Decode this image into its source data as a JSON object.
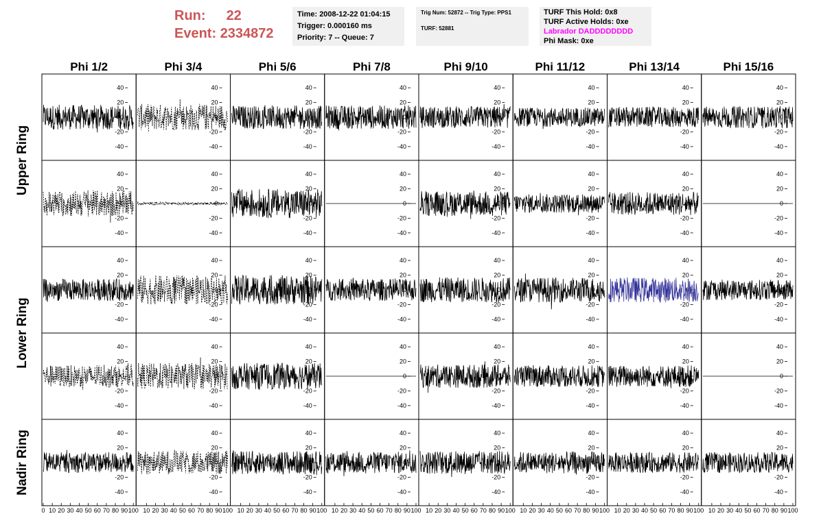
{
  "header": {
    "run_label": "Run:",
    "run_value": "22",
    "event_label": "Event:",
    "event_value": "2334872",
    "time_info": [
      "Time: 2008-12-22 01:04:15",
      "Trigger: 0.000160 ms",
      "Priority: 7 -- Queue: 7"
    ],
    "trig_info": [
      "Trig Num: 52872 -- Trig Type: PPS1",
      "TURF: 52881"
    ],
    "turf_info": [
      {
        "text": "TURF This Hold: 0x8",
        "color": "#000000"
      },
      {
        "text": "TURF Active Holds: 0xe",
        "color": "#000000"
      },
      {
        "text": "Labrador DADDDDDDDD",
        "color": "#ff00ff"
      },
      {
        "text": "Phi Mask: 0xe",
        "color": "#000000"
      }
    ]
  },
  "chart_data": {
    "type": "line",
    "columns": [
      "Phi 1/2",
      "Phi 3/4",
      "Phi 5/6",
      "Phi 7/8",
      "Phi 9/10",
      "Phi 11/12",
      "Phi 13/14",
      "Phi 15/16"
    ],
    "ring_labels": [
      {
        "text": "Upper Ring",
        "rows": [
          0,
          1
        ]
      },
      {
        "text": "Lower Ring",
        "rows": [
          2,
          3
        ]
      },
      {
        "text": "Nadir Ring",
        "rows": [
          4
        ]
      }
    ],
    "xlim": [
      0,
      100
    ],
    "ylim": [
      -55,
      55
    ],
    "y_ticks": [
      -40,
      -20,
      0,
      20,
      40
    ],
    "y_tick_labels": [
      "-40",
      "-20",
      "0",
      "20",
      "40"
    ],
    "x_tick_labels": [
      "0",
      "10",
      "20",
      "30",
      "40",
      "50",
      "60",
      "70",
      "80",
      "90",
      "100"
    ],
    "grid": false,
    "trace_color_default": "#000000",
    "trace_color_highlight": "#333399",
    "panels": [
      [
        {
          "style": "solid",
          "amp": 17,
          "flat": false
        },
        {
          "style": "dashed",
          "amp": 18,
          "flat": false
        },
        {
          "style": "solid",
          "amp": 16,
          "flat": false
        },
        {
          "style": "solid",
          "amp": 16,
          "flat": false
        },
        {
          "style": "solid",
          "amp": 15,
          "flat": false
        },
        {
          "style": "solid",
          "amp": 13,
          "flat": false
        },
        {
          "style": "solid",
          "amp": 14,
          "flat": false
        },
        {
          "style": "solid",
          "amp": 15,
          "flat": false
        }
      ],
      [
        {
          "style": "dashed",
          "amp": 18,
          "flat": false
        },
        {
          "style": "dashed",
          "amp": 2,
          "flat": false
        },
        {
          "style": "solid",
          "amp": 20,
          "flat": false
        },
        {
          "style": "solid",
          "amp": 0,
          "flat": true
        },
        {
          "style": "solid",
          "amp": 17,
          "flat": false
        },
        {
          "style": "solid",
          "amp": 13,
          "flat": false
        },
        {
          "style": "solid",
          "amp": 16,
          "flat": false
        },
        {
          "style": "solid",
          "amp": 0,
          "flat": true
        }
      ],
      [
        {
          "style": "solid",
          "amp": 15,
          "flat": false
        },
        {
          "style": "dashed",
          "amp": 20,
          "flat": false
        },
        {
          "style": "solid",
          "amp": 20,
          "flat": false
        },
        {
          "style": "solid",
          "amp": 15,
          "flat": false
        },
        {
          "style": "solid",
          "amp": 17,
          "flat": false
        },
        {
          "style": "solid",
          "amp": 17,
          "flat": false
        },
        {
          "style": "blue",
          "amp": 17,
          "flat": false
        },
        {
          "style": "solid",
          "amp": 14,
          "flat": false
        }
      ],
      [
        {
          "style": "dashed",
          "amp": 15,
          "flat": false
        },
        {
          "style": "dashed",
          "amp": 18,
          "flat": false
        },
        {
          "style": "solid",
          "amp": 18,
          "flat": false
        },
        {
          "style": "solid",
          "amp": 0,
          "flat": true
        },
        {
          "style": "solid",
          "amp": 16,
          "flat": false
        },
        {
          "style": "solid",
          "amp": 15,
          "flat": false
        },
        {
          "style": "solid",
          "amp": 15,
          "flat": false
        },
        {
          "style": "solid",
          "amp": 0,
          "flat": true
        }
      ],
      [
        {
          "style": "solid",
          "amp": 14,
          "flat": false
        },
        {
          "style": "dashed",
          "amp": 16,
          "flat": false
        },
        {
          "style": "solid",
          "amp": 16,
          "flat": false
        },
        {
          "style": "solid",
          "amp": 15,
          "flat": false
        },
        {
          "style": "solid",
          "amp": 16,
          "flat": false
        },
        {
          "style": "solid",
          "amp": 15,
          "flat": false
        },
        {
          "style": "solid",
          "amp": 14,
          "flat": false
        },
        {
          "style": "solid",
          "amp": 14,
          "flat": false
        }
      ]
    ]
  }
}
